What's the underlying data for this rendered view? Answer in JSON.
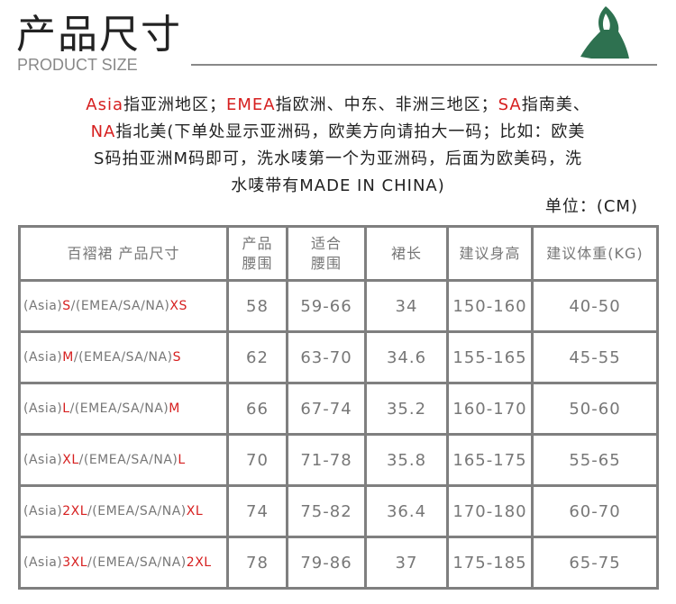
{
  "header": {
    "title": "产品尺寸",
    "subtitle": "PRODUCT SIZE",
    "logo": "yoga-figure-logo",
    "logo_color": "#2e7150"
  },
  "notes": {
    "line1": [
      {
        "t": "Asia",
        "red": true
      },
      {
        "t": "指亚洲地区；"
      },
      {
        "t": "EMEA",
        "red": true
      },
      {
        "t": "指欧洲、中东、非洲三地区；"
      },
      {
        "t": "SA",
        "red": true
      },
      {
        "t": "指南美、"
      }
    ],
    "line2": [
      {
        "t": "NA",
        "red": true
      },
      {
        "t": "指北美(下单处显示亚洲码，欧美方向请拍大一码；比如：欧美"
      }
    ],
    "line3": "S码拍亚洲M码即可，洗水唛第一个为亚洲码，后面为欧美码，洗",
    "line4": "水唛带有MADE IN CHINA)",
    "unit": "单位：(CM)"
  },
  "table": {
    "headers": [
      "百褶裙  产品尺寸",
      "产品\n腰围",
      "适合\n腰围",
      "裙长",
      "建议身高",
      "建议体重(KG)"
    ],
    "rows": [
      {
        "asia": "S",
        "intl": "XS",
        "cells": [
          "58",
          "59-66",
          "34",
          "150-160",
          "40-50"
        ]
      },
      {
        "asia": "M",
        "intl": "S",
        "cells": [
          "62",
          "63-70",
          "34.6",
          "155-165",
          "45-55"
        ]
      },
      {
        "asia": "L",
        "intl": "M",
        "cells": [
          "66",
          "67-74",
          "35.2",
          "160-170",
          "50-60"
        ]
      },
      {
        "asia": "XL",
        "intl": "L",
        "cells": [
          "70",
          "71-78",
          "35.8",
          "165-175",
          "55-65"
        ]
      },
      {
        "asia": "2XL",
        "intl": "XL",
        "cells": [
          "74",
          "75-82",
          "36.4",
          "170-180",
          "60-70"
        ]
      },
      {
        "asia": "3XL",
        "intl": "2XL",
        "cells": [
          "78",
          "79-86",
          "37",
          "175-185",
          "65-75"
        ]
      }
    ],
    "asia_prefix": "(Asia)",
    "intl_prefix": "/(EMEA/SA/NA)",
    "accent": "#d61f1f"
  }
}
